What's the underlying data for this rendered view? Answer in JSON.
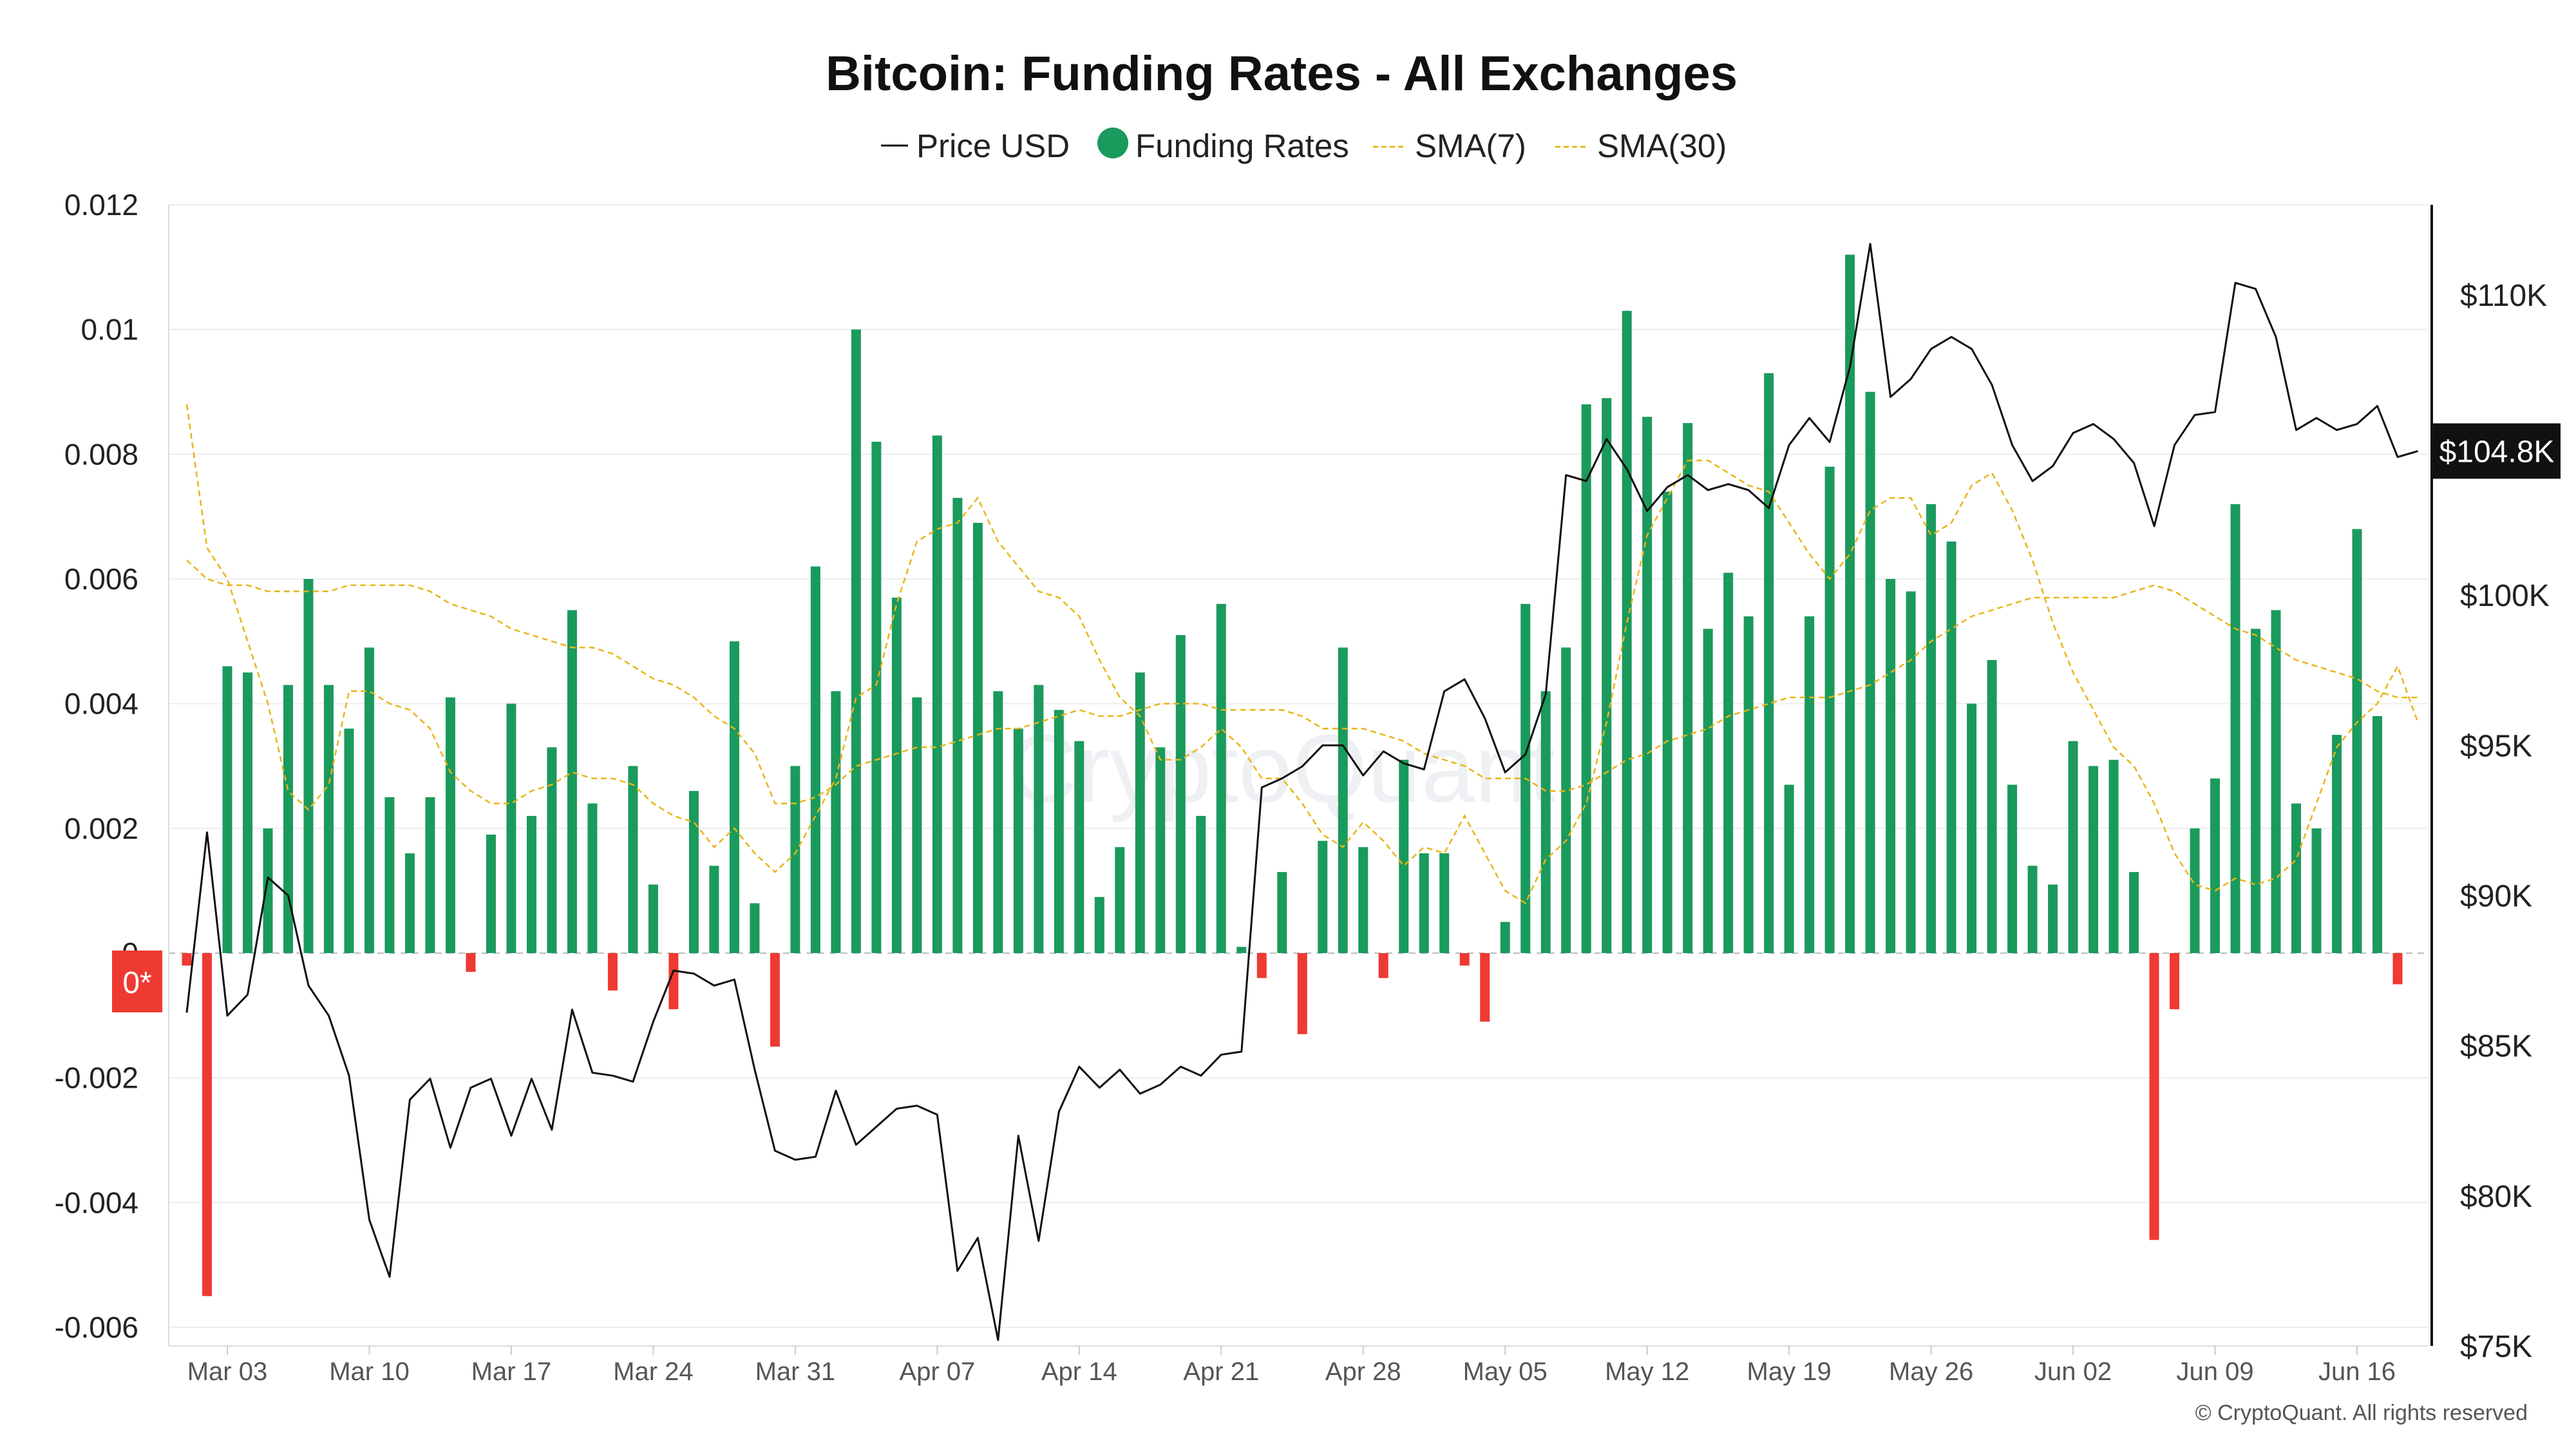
{
  "colors": {
    "positive_bar": "#1a9a5c",
    "negative_bar": "#ee3a32",
    "price_line": "#111111",
    "sma7": "#e9b416",
    "sma30": "#e9b416",
    "grid": "#eeeeee",
    "badge_bg": "#111111",
    "zero_badge_bg": "#ee3a32"
  },
  "chart_data": {
    "type": "bar",
    "title": "Bitcoin: Funding Rates - All Exchanges",
    "legend": {
      "placement": "top-center",
      "items": [
        {
          "label": "Price USD",
          "symbol": "line"
        },
        {
          "label": "Funding Rates",
          "symbol": "dot"
        },
        {
          "label": "SMA(7)",
          "symbol": "dash"
        },
        {
          "label": "SMA(30)",
          "symbol": "dash"
        }
      ]
    },
    "left_axis": {
      "ylim": [
        -0.0063,
        0.012
      ],
      "ticks": [
        0.012,
        0.01,
        0.008,
        0.006,
        0.004,
        0.002,
        0,
        -0.002,
        -0.004,
        -0.006
      ],
      "tick_labels": [
        "0.012",
        "0.01",
        "0.008",
        "0.006",
        "0.004",
        "0.002",
        "0",
        "-0.002",
        "-0.004",
        "-0.006"
      ]
    },
    "right_axis": {
      "ylim": [
        75000,
        113000
      ],
      "ticks": [
        110000,
        105000,
        100000,
        95000,
        90000,
        85000,
        80000,
        75000
      ],
      "tick_labels": [
        "$110K",
        "",
        "$100K",
        "$95K",
        "$90K",
        "$85K",
        "$80K",
        "$75K"
      ]
    },
    "price_badge": "$104.8K",
    "zero_badge": "0*",
    "grid": true,
    "x_axis": {
      "start_date": "2025-03-01",
      "tick_dates": [
        "2025-03-03",
        "2025-03-10",
        "2025-03-17",
        "2025-03-24",
        "2025-03-31",
        "2025-04-07",
        "2025-04-14",
        "2025-04-21",
        "2025-04-28",
        "2025-05-05",
        "2025-05-12",
        "2025-05-19",
        "2025-05-26",
        "2025-06-02",
        "2025-06-09",
        "2025-06-16"
      ],
      "tick_labels": [
        "Mar 03",
        "Mar 10",
        "Mar 17",
        "Mar 24",
        "Mar 31",
        "Apr 07",
        "Apr 14",
        "Apr 21",
        "Apr 28",
        "May 05",
        "May 12",
        "May 19",
        "May 26",
        "Jun 02",
        "Jun 09",
        "Jun 16"
      ]
    },
    "funding_rates": [
      -0.0002,
      -0.0055,
      0.0046,
      0.0045,
      0.002,
      0.0043,
      0.006,
      0.0043,
      0.0036,
      0.0049,
      0.0025,
      0.0016,
      0.0025,
      0.0041,
      -0.0003,
      0.0019,
      0.004,
      0.0022,
      0.0033,
      0.0055,
      0.0024,
      -0.0006,
      0.003,
      0.0011,
      -0.0009,
      0.0026,
      0.0014,
      0.005,
      0.0008,
      -0.0015,
      0.003,
      0.0062,
      0.0042,
      0.01,
      0.0082,
      0.0057,
      0.0041,
      0.0083,
      0.0073,
      0.0069,
      0.0042,
      0.0036,
      0.0043,
      0.0039,
      0.0034,
      0.0009,
      0.0017,
      0.0045,
      0.0033,
      0.0051,
      0.0022,
      0.0056,
      0.0001,
      -0.0004,
      0.0013,
      -0.0013,
      0.0018,
      0.0049,
      0.0017,
      -0.0004,
      0.0031,
      0.0016,
      0.0016,
      -0.0002,
      -0.0011,
      0.0005,
      0.0056,
      0.0042,
      0.0049,
      0.0088,
      0.0089,
      0.0103,
      0.0086,
      0.0074,
      0.0085,
      0.0052,
      0.0061,
      0.0054,
      0.0093,
      0.0027,
      0.0054,
      0.0078,
      0.0112,
      0.009,
      0.006,
      0.0058,
      0.0072,
      0.0066,
      0.004,
      0.0047,
      0.0027,
      0.0014,
      0.0011,
      0.0034,
      0.003,
      0.0031,
      0.0013,
      -0.0046,
      -0.0009,
      0.002,
      0.0028,
      0.0072,
      0.0052,
      0.0055,
      0.0024,
      0.002,
      0.0035,
      0.0068,
      0.0038,
      -0.0005
    ],
    "price_usd": [
      86100,
      92100,
      86000,
      86700,
      90600,
      90000,
      87000,
      86000,
      84000,
      79200,
      77300,
      83200,
      83900,
      81600,
      83600,
      83900,
      82000,
      83900,
      82200,
      86200,
      84100,
      84000,
      83800,
      85800,
      87500,
      87400,
      87000,
      87200,
      84200,
      81500,
      81200,
      81300,
      83500,
      81700,
      82300,
      82900,
      83000,
      82700,
      77500,
      78600,
      75200,
      82000,
      78500,
      82800,
      84300,
      83600,
      84200,
      83400,
      83700,
      84300,
      84000,
      84700,
      84800,
      93600,
      93900,
      94300,
      95000,
      95000,
      94000,
      94800,
      94400,
      94200,
      96800,
      97200,
      95900,
      94100,
      94700,
      96700,
      104000,
      103800,
      105200,
      104200,
      102800,
      103600,
      104000,
      103500,
      103700,
      103500,
      102900,
      105000,
      105900,
      105100,
      107600,
      111700,
      106600,
      107200,
      108200,
      108600,
      108200,
      107000,
      105000,
      103800,
      104300,
      105400,
      105700,
      105200,
      104400,
      102300,
      105000,
      106000,
      106100,
      110400,
      110200,
      108600,
      105500,
      105900,
      105500,
      105700,
      106300,
      104600,
      104800
    ],
    "sma7": [
      0.0088,
      0.0065,
      0.006,
      0.005,
      0.004,
      0.0026,
      0.0023,
      0.0027,
      0.0042,
      0.0042,
      0.004,
      0.0039,
      0.0036,
      0.0029,
      0.0026,
      0.0024,
      0.0024,
      0.0026,
      0.0027,
      0.0029,
      0.0028,
      0.0028,
      0.0027,
      0.0024,
      0.0022,
      0.0021,
      0.0017,
      0.002,
      0.0016,
      0.0013,
      0.0016,
      0.0022,
      0.0028,
      0.0041,
      0.0043,
      0.0056,
      0.0066,
      0.0068,
      0.0069,
      0.0073,
      0.0066,
      0.0062,
      0.0058,
      0.0057,
      0.0054,
      0.0047,
      0.0041,
      0.0038,
      0.0031,
      0.0031,
      0.0033,
      0.0036,
      0.0033,
      0.0028,
      0.0028,
      0.0024,
      0.0019,
      0.0017,
      0.0021,
      0.0018,
      0.0014,
      0.0017,
      0.0016,
      0.0022,
      0.0016,
      0.001,
      0.0008,
      0.0015,
      0.0018,
      0.0024,
      0.0037,
      0.0053,
      0.0067,
      0.0073,
      0.0079,
      0.0079,
      0.0077,
      0.0075,
      0.0074,
      0.0069,
      0.0064,
      0.006,
      0.0064,
      0.0071,
      0.0073,
      0.0073,
      0.0067,
      0.0069,
      0.0075,
      0.0077,
      0.0071,
      0.0063,
      0.0053,
      0.0045,
      0.0039,
      0.0033,
      0.003,
      0.0024,
      0.0016,
      0.0011,
      0.001,
      0.0012,
      0.0011,
      0.0012,
      0.0015,
      0.0024,
      0.0033,
      0.0037,
      0.004,
      0.0046,
      0.0037
    ],
    "sma30": [
      0.0063,
      0.006,
      0.0059,
      0.0059,
      0.0058,
      0.0058,
      0.0058,
      0.0058,
      0.0059,
      0.0059,
      0.0059,
      0.0059,
      0.0058,
      0.0056,
      0.0055,
      0.0054,
      0.0052,
      0.0051,
      0.005,
      0.0049,
      0.0049,
      0.0048,
      0.0046,
      0.0044,
      0.0043,
      0.0041,
      0.0038,
      0.0036,
      0.0032,
      0.0024,
      0.0024,
      0.0025,
      0.0027,
      0.003,
      0.0031,
      0.0032,
      0.0033,
      0.0033,
      0.0034,
      0.0035,
      0.0036,
      0.0036,
      0.0037,
      0.0038,
      0.0039,
      0.0038,
      0.0038,
      0.0039,
      0.004,
      0.004,
      0.004,
      0.0039,
      0.0039,
      0.0039,
      0.0039,
      0.0038,
      0.0036,
      0.0036,
      0.0036,
      0.0035,
      0.0034,
      0.0032,
      0.0031,
      0.003,
      0.0028,
      0.0028,
      0.0028,
      0.0026,
      0.0026,
      0.0027,
      0.0029,
      0.0031,
      0.0032,
      0.0034,
      0.0035,
      0.0036,
      0.0038,
      0.0039,
      0.004,
      0.0041,
      0.0041,
      0.0041,
      0.0042,
      0.0043,
      0.0045,
      0.0047,
      0.005,
      0.0052,
      0.0054,
      0.0055,
      0.0056,
      0.0057,
      0.0057,
      0.0057,
      0.0057,
      0.0057,
      0.0058,
      0.0059,
      0.0058,
      0.0056,
      0.0054,
      0.0052,
      0.0051,
      0.0049,
      0.0047,
      0.0046,
      0.0045,
      0.0044,
      0.0042,
      0.0041,
      0.0041
    ]
  },
  "watermark": "CryptoQuant",
  "credit": "© CryptoQuant. All rights reserved"
}
